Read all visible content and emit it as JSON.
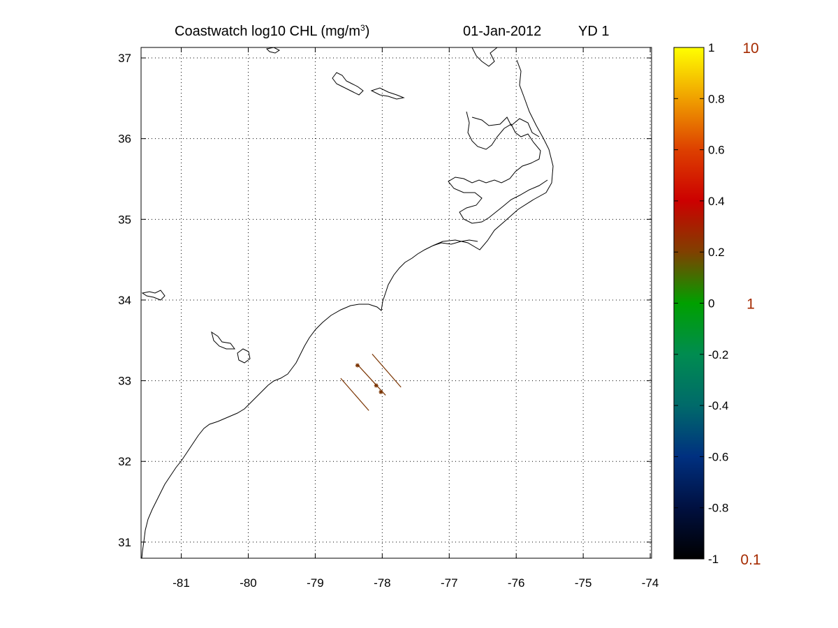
{
  "title": {
    "prefix": "Coastwatch  log10  CHL (mg/m",
    "superscript": "3",
    "suffix": ")",
    "date": "01-Jan-2012",
    "yearday": "YD 1"
  },
  "map": {
    "lon_range": [
      -81.6,
      -73.98
    ],
    "lat_range": [
      30.8,
      37.13
    ],
    "lon_ticks": [
      -81,
      -80,
      -79,
      -78,
      -77,
      -76,
      -75,
      -74
    ],
    "lat_ticks": [
      31,
      32,
      33,
      34,
      35,
      36,
      37
    ],
    "lon_tick_labels": [
      "-81",
      "-80",
      "-79",
      "-78",
      "-77",
      "-76",
      "-75",
      "-74"
    ],
    "lat_tick_labels": [
      "31",
      "32",
      "33",
      "34",
      "35",
      "36",
      "37"
    ],
    "grid": "dotted"
  },
  "colorbar": {
    "tick_values": [
      -1,
      -0.8,
      -0.6,
      -0.4,
      -0.2,
      0,
      0.2,
      0.4,
      0.6,
      0.8,
      1
    ],
    "tick_labels": [
      "-1",
      "-0.8",
      "-0.6",
      "-0.4",
      "-0.2",
      "0",
      "0.2",
      "0.4",
      "0.6",
      "0.8",
      "1"
    ],
    "range": [
      -1,
      1
    ],
    "linear_labels": [
      {
        "value": 1,
        "text": "10"
      },
      {
        "value": 0,
        "text": "1"
      },
      {
        "value": -1,
        "text": "0.1"
      }
    ],
    "linear_label_color": "#a52a00",
    "colors": [
      "#000000",
      "#001040",
      "#003080",
      "#006a6a",
      "#008c50",
      "#00a000",
      "#804000",
      "#cc0000",
      "#dd4000",
      "#f0a000",
      "#ffff00"
    ]
  },
  "tracks": {
    "color": "#7a3300",
    "lines": [
      {
        "start": [
          -78.62,
          33.03
        ],
        "end": [
          -78.2,
          32.63
        ]
      },
      {
        "start": [
          -78.37,
          33.2
        ],
        "end": [
          -77.95,
          32.82
        ]
      },
      {
        "start": [
          -78.15,
          33.33
        ],
        "end": [
          -77.72,
          32.92
        ]
      }
    ],
    "stations": [
      {
        "lon": -78.37,
        "lat": 33.19
      },
      {
        "lon": -78.09,
        "lat": 32.94
      },
      {
        "lon": -78.02,
        "lat": 32.86
      }
    ]
  }
}
